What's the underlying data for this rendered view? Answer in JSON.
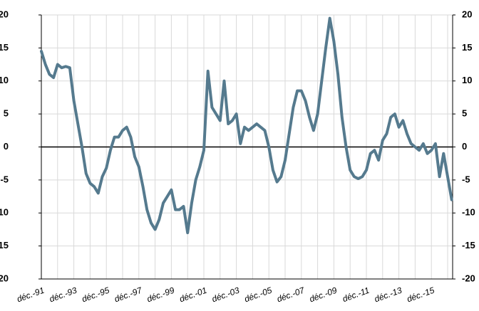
{
  "chart_data": {
    "type": "line",
    "categories": [
      "déc.-91",
      null,
      null,
      null,
      null,
      null,
      null,
      null,
      "déc.-93",
      null,
      null,
      null,
      null,
      null,
      null,
      null,
      "déc.-95",
      null,
      null,
      null,
      null,
      null,
      null,
      null,
      "déc.-97",
      null,
      null,
      null,
      null,
      null,
      null,
      null,
      "déc.-99",
      null,
      null,
      null,
      null,
      null,
      null,
      null,
      "déc.-01",
      null,
      null,
      null,
      null,
      null,
      null,
      null,
      "déc.-03",
      null,
      null,
      null,
      null,
      null,
      null,
      null,
      "déc.-05",
      null,
      null,
      null,
      null,
      null,
      null,
      null,
      "déc.-07",
      null,
      null,
      null,
      null,
      null,
      null,
      null,
      "déc.-09",
      null,
      null,
      null,
      null,
      null,
      null,
      null,
      "déc.-11",
      null,
      null,
      null,
      null,
      null,
      null,
      null,
      "déc.-13",
      null,
      null,
      null,
      null,
      null,
      null,
      null,
      "déc.-15",
      null,
      null,
      null,
      null,
      null
    ],
    "series": [
      {
        "color": "#557a8e",
        "values": [
          14.5,
          12.5,
          11,
          10.5,
          12.5,
          12,
          12.2,
          12,
          7,
          3.5,
          0,
          -4,
          -5.5,
          -6,
          -7,
          -4.5,
          -3.2,
          -0.5,
          1.5,
          1.5,
          2.5,
          3,
          1.5,
          -1.5,
          -3,
          -6,
          -9.5,
          -11.5,
          -12.5,
          -11,
          -8.5,
          -7.5,
          -6.5,
          -9.5,
          -9.5,
          -9,
          -13,
          -8.5,
          -5,
          -3,
          -0.5,
          11.5,
          6,
          5,
          4,
          10,
          3.5,
          4,
          5,
          0.5,
          3,
          2.5,
          3,
          3.5,
          3,
          2.5,
          0,
          -3.5,
          -5.3,
          -4.5,
          -2,
          2,
          6,
          8.5,
          8.5,
          7,
          4.5,
          2.5,
          5,
          10,
          15,
          19.5,
          16,
          11,
          4.5,
          0,
          -3.5,
          -4.5,
          -4.8,
          -4.5,
          -3.5,
          -1,
          -0.5,
          -2,
          1,
          2,
          4.5,
          5,
          3,
          4,
          2,
          0.5,
          0,
          -0.5,
          0.5,
          -1,
          -0.5,
          0.5,
          -4.5,
          -1,
          -4.5,
          -8
        ]
      }
    ],
    "ylim": [
      -20,
      20
    ],
    "yticks": [
      -20,
      -15,
      -10,
      -5,
      0,
      5,
      10,
      15,
      20
    ],
    "grid": true
  }
}
